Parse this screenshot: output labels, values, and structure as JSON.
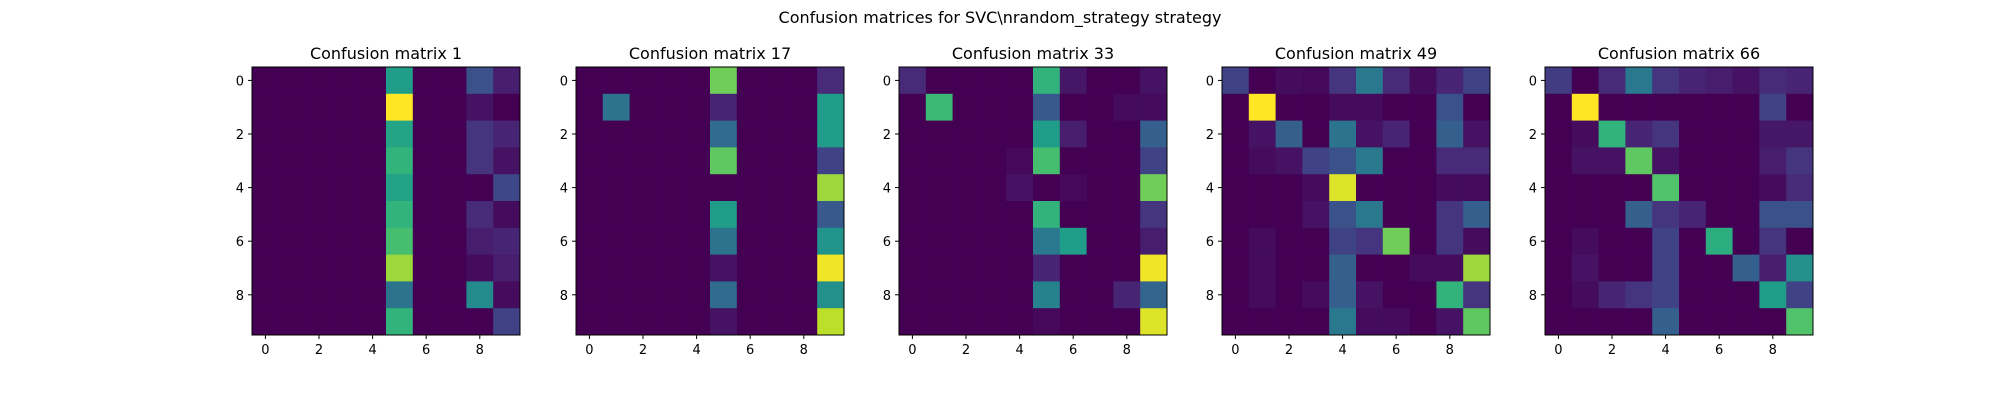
{
  "figure": {
    "suptitle": "Confusion matrices for SVC\\nrandom_strategy strategy"
  },
  "colormap": {
    "name": "viridis",
    "stops": [
      "#440154",
      "#482878",
      "#3e4989",
      "#31688e",
      "#26828e",
      "#1f9e89",
      "#35b779",
      "#6ece58",
      "#b5de2b",
      "#fde725"
    ]
  },
  "chart_data": [
    {
      "type": "heatmap",
      "title": "Confusion matrix 1",
      "x_ticks": [
        "0",
        "2",
        "4",
        "6",
        "8"
      ],
      "y_ticks": [
        "0",
        "2",
        "4",
        "6",
        "8"
      ],
      "grid": false,
      "values": [
        [
          0.0,
          0.0,
          0.0,
          0.0,
          0.0,
          0.55,
          0.0,
          0.0,
          0.25,
          0.08
        ],
        [
          0.0,
          0.0,
          0.0,
          0.0,
          0.0,
          1.0,
          0.0,
          0.0,
          0.05,
          0.0
        ],
        [
          0.0,
          0.0,
          0.0,
          0.0,
          0.0,
          0.58,
          0.0,
          0.0,
          0.15,
          0.1
        ],
        [
          0.0,
          0.0,
          0.0,
          0.0,
          0.0,
          0.65,
          0.0,
          0.0,
          0.15,
          0.05
        ],
        [
          0.0,
          0.0,
          0.0,
          0.0,
          0.0,
          0.57,
          0.0,
          0.0,
          0.0,
          0.22
        ],
        [
          0.0,
          0.0,
          0.0,
          0.0,
          0.0,
          0.65,
          0.0,
          0.0,
          0.12,
          0.03
        ],
        [
          0.0,
          0.0,
          0.0,
          0.0,
          0.0,
          0.7,
          0.0,
          0.0,
          0.08,
          0.1
        ],
        [
          0.0,
          0.0,
          0.0,
          0.0,
          0.0,
          0.85,
          0.0,
          0.0,
          0.03,
          0.08
        ],
        [
          0.0,
          0.0,
          0.0,
          0.0,
          0.0,
          0.38,
          0.0,
          0.0,
          0.48,
          0.03
        ],
        [
          0.0,
          0.0,
          0.0,
          0.0,
          0.0,
          0.65,
          0.0,
          0.0,
          0.0,
          0.2
        ]
      ]
    },
    {
      "type": "heatmap",
      "title": "Confusion matrix 17",
      "x_ticks": [
        "0",
        "2",
        "4",
        "6",
        "8"
      ],
      "y_ticks": [
        "0",
        "2",
        "4",
        "6",
        "8"
      ],
      "grid": false,
      "values": [
        [
          0.0,
          0.0,
          0.0,
          0.0,
          0.0,
          0.78,
          0.0,
          0.0,
          0.0,
          0.12
        ],
        [
          0.0,
          0.38,
          0.0,
          0.0,
          0.0,
          0.1,
          0.0,
          0.0,
          0.0,
          0.55
        ],
        [
          0.0,
          0.0,
          0.0,
          0.0,
          0.0,
          0.35,
          0.0,
          0.0,
          0.0,
          0.55
        ],
        [
          0.0,
          0.0,
          0.0,
          0.0,
          0.0,
          0.75,
          0.0,
          0.0,
          0.0,
          0.2
        ],
        [
          0.0,
          0.0,
          0.0,
          0.0,
          0.0,
          0.0,
          0.0,
          0.0,
          0.0,
          0.85
        ],
        [
          0.0,
          0.0,
          0.0,
          0.0,
          0.0,
          0.55,
          0.0,
          0.0,
          0.0,
          0.28
        ],
        [
          0.0,
          0.0,
          0.0,
          0.0,
          0.0,
          0.38,
          0.0,
          0.0,
          0.0,
          0.52
        ],
        [
          0.0,
          0.0,
          0.0,
          0.0,
          0.0,
          0.05,
          0.0,
          0.0,
          0.0,
          0.98
        ],
        [
          0.0,
          0.0,
          0.0,
          0.0,
          0.0,
          0.35,
          0.0,
          0.0,
          0.0,
          0.5
        ],
        [
          0.0,
          0.0,
          0.0,
          0.0,
          0.0,
          0.05,
          0.0,
          0.0,
          0.0,
          0.9
        ]
      ]
    },
    {
      "type": "heatmap",
      "title": "Confusion matrix 33",
      "x_ticks": [
        "0",
        "2",
        "4",
        "6",
        "8"
      ],
      "y_ticks": [
        "0",
        "2",
        "4",
        "6",
        "8"
      ],
      "grid": false,
      "values": [
        [
          0.12,
          0.0,
          0.0,
          0.0,
          0.0,
          0.65,
          0.06,
          0.0,
          0.0,
          0.05
        ],
        [
          0.0,
          0.68,
          0.0,
          0.0,
          0.0,
          0.28,
          0.0,
          0.0,
          0.03,
          0.03
        ],
        [
          0.0,
          0.0,
          0.0,
          0.0,
          0.0,
          0.55,
          0.08,
          0.0,
          0.0,
          0.3
        ],
        [
          0.0,
          0.0,
          0.0,
          0.0,
          0.02,
          0.7,
          0.0,
          0.0,
          0.0,
          0.2
        ],
        [
          0.0,
          0.0,
          0.0,
          0.0,
          0.05,
          0.0,
          0.02,
          0.0,
          0.0,
          0.78
        ],
        [
          0.0,
          0.0,
          0.0,
          0.0,
          0.0,
          0.65,
          0.0,
          0.0,
          0.0,
          0.15
        ],
        [
          0.0,
          0.0,
          0.0,
          0.0,
          0.0,
          0.4,
          0.55,
          0.0,
          0.0,
          0.08
        ],
        [
          0.0,
          0.0,
          0.0,
          0.0,
          0.0,
          0.1,
          0.0,
          0.0,
          0.0,
          0.98
        ],
        [
          0.0,
          0.0,
          0.0,
          0.0,
          0.0,
          0.45,
          0.0,
          0.0,
          0.1,
          0.32
        ],
        [
          0.0,
          0.0,
          0.0,
          0.0,
          0.0,
          0.02,
          0.0,
          0.0,
          0.0,
          0.95
        ]
      ]
    },
    {
      "type": "heatmap",
      "title": "Confusion matrix 49",
      "x_ticks": [
        "0",
        "2",
        "4",
        "6",
        "8"
      ],
      "y_ticks": [
        "0",
        "2",
        "4",
        "6",
        "8"
      ],
      "grid": false,
      "values": [
        [
          0.2,
          0.0,
          0.03,
          0.02,
          0.15,
          0.4,
          0.12,
          0.03,
          0.1,
          0.2
        ],
        [
          0.0,
          1.0,
          0.0,
          0.0,
          0.03,
          0.03,
          0.0,
          0.0,
          0.25,
          0.0
        ],
        [
          0.0,
          0.05,
          0.3,
          0.0,
          0.38,
          0.05,
          0.1,
          0.0,
          0.3,
          0.05
        ],
        [
          0.0,
          0.03,
          0.05,
          0.2,
          0.25,
          0.4,
          0.0,
          0.0,
          0.12,
          0.12
        ],
        [
          0.0,
          0.0,
          0.0,
          0.03,
          0.95,
          0.0,
          0.0,
          0.0,
          0.03,
          0.03
        ],
        [
          0.0,
          0.0,
          0.0,
          0.05,
          0.25,
          0.4,
          0.0,
          0.0,
          0.15,
          0.3
        ],
        [
          0.0,
          0.03,
          0.0,
          0.0,
          0.2,
          0.15,
          0.78,
          0.0,
          0.15,
          0.03
        ],
        [
          0.0,
          0.03,
          0.0,
          0.0,
          0.3,
          0.0,
          0.0,
          0.03,
          0.03,
          0.85
        ],
        [
          0.0,
          0.03,
          0.0,
          0.03,
          0.3,
          0.05,
          0.0,
          0.0,
          0.65,
          0.15
        ],
        [
          0.0,
          0.0,
          0.0,
          0.0,
          0.4,
          0.03,
          0.03,
          0.0,
          0.05,
          0.75
        ]
      ]
    },
    {
      "type": "heatmap",
      "title": "Confusion matrix 66",
      "x_ticks": [
        "0",
        "2",
        "4",
        "6",
        "8"
      ],
      "y_ticks": [
        "0",
        "2",
        "4",
        "6",
        "8"
      ],
      "grid": false,
      "values": [
        [
          0.18,
          0.0,
          0.12,
          0.4,
          0.15,
          0.1,
          0.08,
          0.05,
          0.12,
          0.1
        ],
        [
          0.0,
          1.0,
          0.0,
          0.0,
          0.0,
          0.0,
          0.0,
          0.0,
          0.2,
          0.0
        ],
        [
          0.0,
          0.03,
          0.65,
          0.1,
          0.15,
          0.0,
          0.0,
          0.0,
          0.06,
          0.06
        ],
        [
          0.0,
          0.05,
          0.05,
          0.75,
          0.05,
          0.0,
          0.0,
          0.0,
          0.08,
          0.15
        ],
        [
          0.0,
          0.0,
          0.0,
          0.0,
          0.72,
          0.0,
          0.0,
          0.0,
          0.03,
          0.12
        ],
        [
          0.0,
          0.0,
          0.0,
          0.3,
          0.15,
          0.1,
          0.0,
          0.0,
          0.25,
          0.25
        ],
        [
          0.0,
          0.03,
          0.0,
          0.0,
          0.2,
          0.0,
          0.62,
          0.0,
          0.15,
          0.0
        ],
        [
          0.0,
          0.05,
          0.0,
          0.0,
          0.2,
          0.0,
          0.0,
          0.3,
          0.08,
          0.5
        ],
        [
          0.0,
          0.03,
          0.1,
          0.15,
          0.2,
          0.0,
          0.0,
          0.0,
          0.55,
          0.2
        ],
        [
          0.0,
          0.0,
          0.0,
          0.0,
          0.3,
          0.0,
          0.0,
          0.0,
          0.0,
          0.72
        ]
      ]
    }
  ]
}
